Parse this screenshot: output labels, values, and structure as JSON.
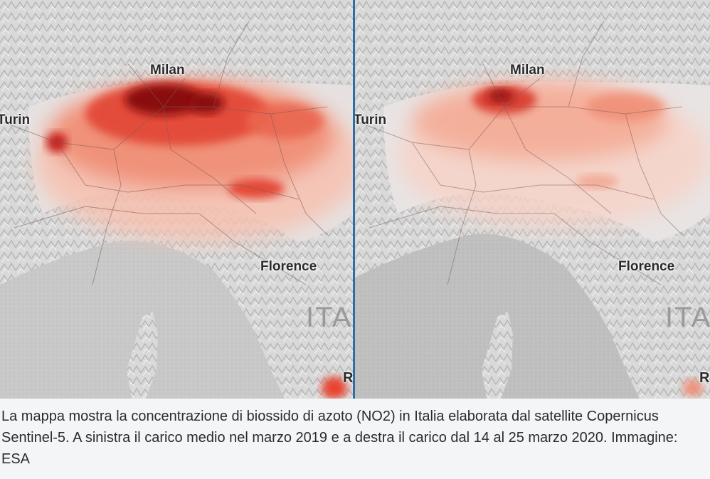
{
  "maps": {
    "left": {
      "labels": {
        "milan": "Milan",
        "turin": "Turin",
        "florence": "Florence",
        "italy": "ITAL",
        "rome": "R"
      },
      "pollution_level": 1.0
    },
    "right": {
      "labels": {
        "milan": "Milan",
        "turin": "Turin",
        "florence": "Florence",
        "italy": "ITAL",
        "rome": "R"
      },
      "pollution_level": 0.45
    },
    "colors": {
      "no2_high": "#6e0a0a",
      "no2_mid": "#e84a3a",
      "no2_low": "#f7b7a3",
      "terrain": "#d4d4d4",
      "divider": "#2d6ea8"
    }
  },
  "caption": {
    "text": "La mappa mostra la concentrazione di biossido di azoto (NO2) in Italia elaborata dal satellite Copernicus Sentinel-5. A sinistra il carico medio nel marzo 2019 e a destra il carico dal 14 al 25 marzo 2020. Immagine: ESA"
  }
}
